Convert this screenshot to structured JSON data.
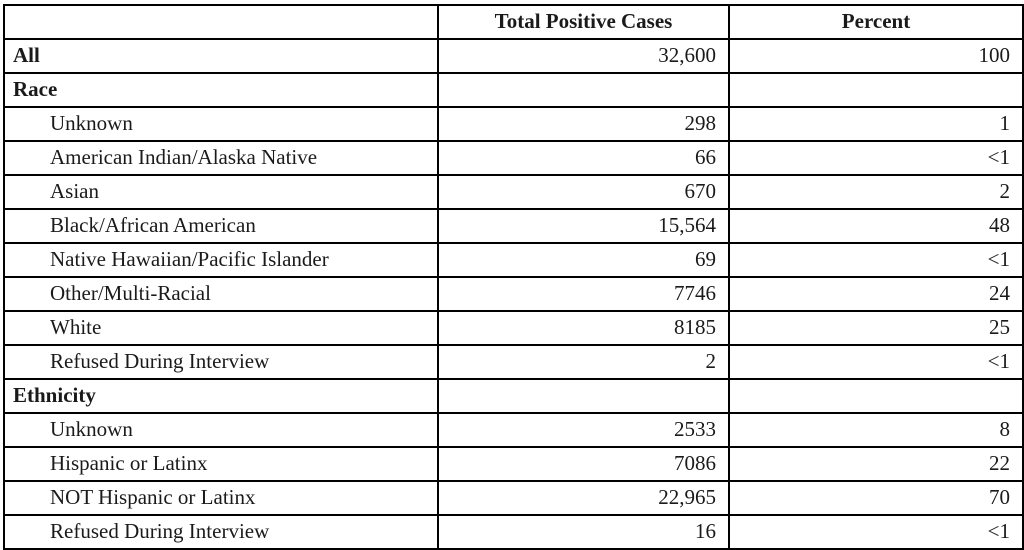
{
  "colors": {
    "background": "#ffffff",
    "text": "#1a1a1a",
    "border": "#000000"
  },
  "chart_data": {
    "type": "table",
    "columns": [
      "",
      "Total Positive Cases",
      "Percent"
    ],
    "rows": [
      {
        "label": "All",
        "total_positive_cases": "32,600",
        "percent": "100",
        "row_type": "total"
      },
      {
        "label": "Race",
        "total_positive_cases": "",
        "percent": "",
        "row_type": "section"
      },
      {
        "label": "Unknown",
        "total_positive_cases": "298",
        "percent": "1",
        "row_type": "sub"
      },
      {
        "label": "American Indian/Alaska Native",
        "total_positive_cases": "66",
        "percent": "<1",
        "row_type": "sub"
      },
      {
        "label": "Asian",
        "total_positive_cases": "670",
        "percent": "2",
        "row_type": "sub"
      },
      {
        "label": "Black/African American",
        "total_positive_cases": "15,564",
        "percent": "48",
        "row_type": "sub"
      },
      {
        "label": "Native Hawaiian/Pacific Islander",
        "total_positive_cases": "69",
        "percent": "<1",
        "row_type": "sub"
      },
      {
        "label": "Other/Multi-Racial",
        "total_positive_cases": "7746",
        "percent": "24",
        "row_type": "sub"
      },
      {
        "label": "White",
        "total_positive_cases": "8185",
        "percent": "25",
        "row_type": "sub"
      },
      {
        "label": "Refused During Interview",
        "total_positive_cases": "2",
        "percent": "<1",
        "row_type": "sub"
      },
      {
        "label": "Ethnicity",
        "total_positive_cases": "",
        "percent": "",
        "row_type": "section"
      },
      {
        "label": "Unknown",
        "total_positive_cases": "2533",
        "percent": "8",
        "row_type": "sub"
      },
      {
        "label": "Hispanic or Latinx",
        "total_positive_cases": "7086",
        "percent": "22",
        "row_type": "sub"
      },
      {
        "label": "NOT Hispanic or Latinx",
        "total_positive_cases": "22,965",
        "percent": "70",
        "row_type": "sub"
      },
      {
        "label": "Refused During Interview",
        "total_positive_cases": "16",
        "percent": "<1",
        "row_type": "sub"
      }
    ]
  }
}
